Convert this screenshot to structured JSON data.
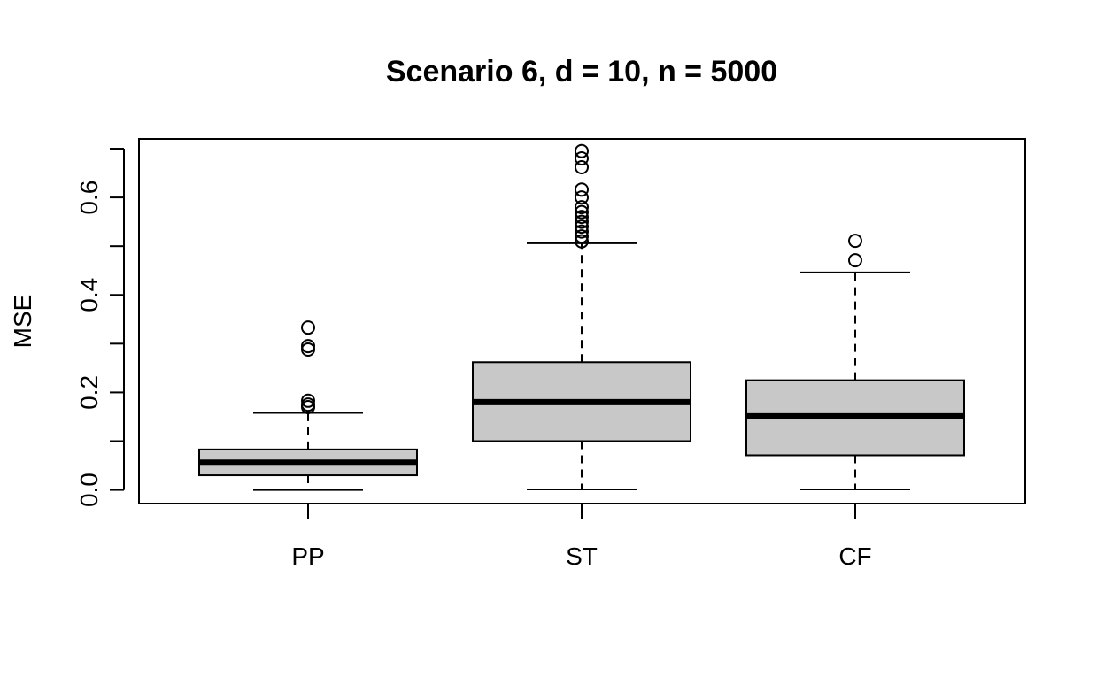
{
  "chart_data": {
    "type": "boxplot",
    "title": "Scenario 6, d = 10, n = 5000",
    "xlabel": "",
    "ylabel": "MSE",
    "ylim": [
      -0.028,
      0.72
    ],
    "yticks": [
      0.0,
      0.1,
      0.2,
      0.3,
      0.4,
      0.5,
      0.6,
      0.7
    ],
    "ytick_labels": [
      "0.0",
      "",
      "0.2",
      "",
      "0.4",
      "",
      "0.6",
      ""
    ],
    "categories": [
      "PP",
      "ST",
      "CF"
    ],
    "box_fill": "#c8c8c8",
    "boxes": [
      {
        "name": "PP",
        "whisker_low": 0.0,
        "q1": 0.03,
        "median": 0.056,
        "q3": 0.083,
        "whisker_high": 0.158,
        "outliers": [
          0.333,
          0.295,
          0.288,
          0.183,
          0.175,
          0.17
        ]
      },
      {
        "name": "ST",
        "whisker_low": 0.001,
        "q1": 0.1,
        "median": 0.18,
        "q3": 0.262,
        "whisker_high": 0.506,
        "outliers": [
          0.695,
          0.68,
          0.662,
          0.616,
          0.6,
          0.58,
          0.57,
          0.56,
          0.55,
          0.54,
          0.53,
          0.52,
          0.51
        ]
      },
      {
        "name": "CF",
        "whisker_low": 0.001,
        "q1": 0.071,
        "median": 0.151,
        "q3": 0.225,
        "whisker_high": 0.446,
        "outliers": [
          0.511,
          0.471
        ]
      }
    ]
  }
}
